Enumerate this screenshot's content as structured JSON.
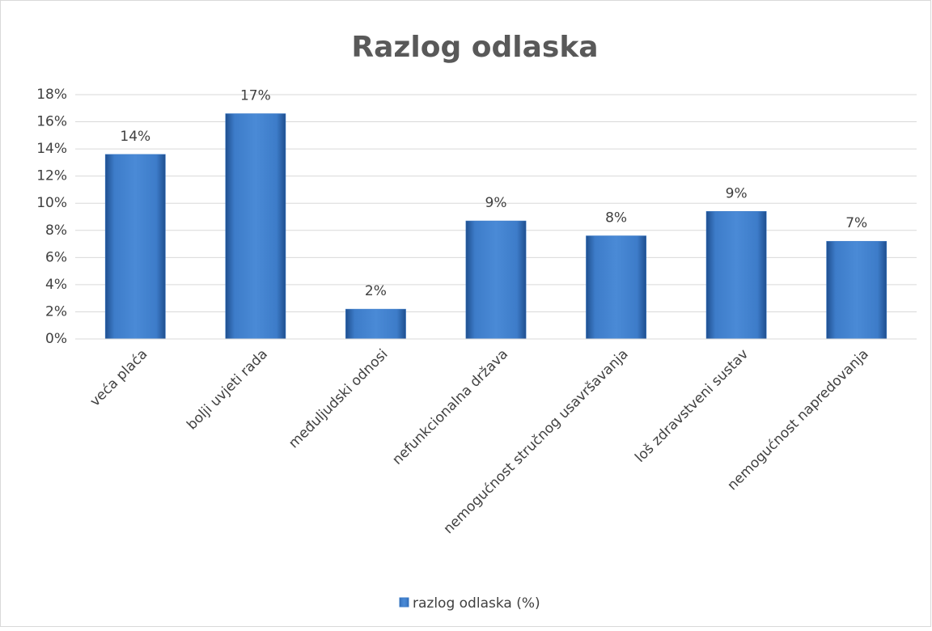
{
  "chart_data": {
    "type": "bar",
    "title": "Razlog odlaska",
    "categories": [
      "veća plaća",
      "bolji uvjeti rada",
      "međuljudski odnosi",
      "nefunkcionalna država",
      "nemogućnost stručnog usavršavanja",
      "loš zdravstveni sustav",
      "nemogućnost napredovanja"
    ],
    "series": [
      {
        "name": "razlog odlaska (%)",
        "color": "#3d7cc9",
        "values": [
          13.6,
          16.6,
          2.2,
          8.7,
          7.6,
          9.4,
          7.2
        ],
        "value_labels": [
          "14%",
          "17%",
          "2%",
          "9%",
          "8%",
          "9%",
          "7%"
        ]
      }
    ],
    "ylim": [
      0,
      18
    ],
    "yticks": [
      {
        "value": 0,
        "label": "0%"
      },
      {
        "value": 2,
        "label": "2%"
      },
      {
        "value": 4,
        "label": "4%"
      },
      {
        "value": 6,
        "label": "6%"
      },
      {
        "value": 8,
        "label": "8%"
      },
      {
        "value": 10,
        "label": "10%"
      },
      {
        "value": 12,
        "label": "12%"
      },
      {
        "value": 14,
        "label": "14%"
      },
      {
        "value": 16,
        "label": "16%"
      },
      {
        "value": 18,
        "label": "18%"
      }
    ],
    "grid": true,
    "legend": "bottom"
  }
}
